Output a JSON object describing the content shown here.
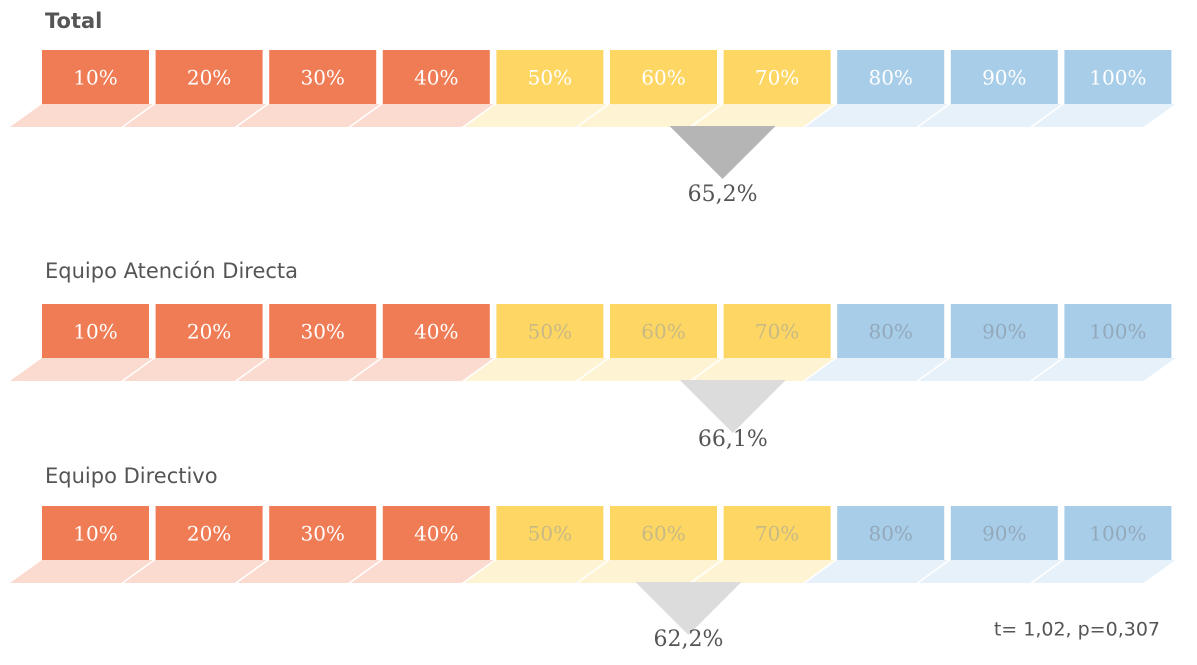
{
  "chart_data": [
    {
      "type": "segment_scale",
      "title": "Total",
      "xticks": [
        {
          "value": 10,
          "label": "10%"
        },
        {
          "value": 20,
          "label": "20%"
        },
        {
          "value": 30,
          "label": "30%"
        },
        {
          "value": 40,
          "label": "40%"
        },
        {
          "value": 50,
          "label": "50%"
        },
        {
          "value": 60,
          "label": "60%"
        },
        {
          "value": 70,
          "label": "70%"
        },
        {
          "value": 80,
          "label": "80%"
        },
        {
          "value": 90,
          "label": "90%"
        },
        {
          "value": 100,
          "label": "100%"
        }
      ],
      "segment_colors": [
        "#f07c55",
        "#f07c55",
        "#f07c55",
        "#f07c55",
        "#fdd663",
        "#fdd663",
        "#fdd663",
        "#a8cde8",
        "#a8cde8",
        "#a8cde8"
      ],
      "tick_label_colors": [
        "#ffffff",
        "#ffffff",
        "#ffffff",
        "#ffffff",
        "#ffffff",
        "#ffffff",
        "#ffffff",
        "#ffffff",
        "#ffffff",
        "#ffffff"
      ],
      "values": [
        65.2
      ],
      "value_labels": [
        "65,2%"
      ],
      "marker_color": "#b5b5b5"
    },
    {
      "type": "segment_scale",
      "title": "Equipo Atención Directa",
      "xticks": [
        {
          "value": 10,
          "label": "10%"
        },
        {
          "value": 20,
          "label": "20%"
        },
        {
          "value": 30,
          "label": "30%"
        },
        {
          "value": 40,
          "label": "40%"
        },
        {
          "value": 50,
          "label": "50%"
        },
        {
          "value": 60,
          "label": "60%"
        },
        {
          "value": 70,
          "label": "70%"
        },
        {
          "value": 80,
          "label": "80%"
        },
        {
          "value": 90,
          "label": "90%"
        },
        {
          "value": 100,
          "label": "100%"
        }
      ],
      "segment_colors": [
        "#f07c55",
        "#f07c55",
        "#f07c55",
        "#f07c55",
        "#fdd663",
        "#fdd663",
        "#fdd663",
        "#a8cde8",
        "#a8cde8",
        "#a8cde8"
      ],
      "tick_label_colors": [
        "#ffffff",
        "#ffffff",
        "#ffffff",
        "#ffffff",
        "#c9b985",
        "#c9b985",
        "#c9b985",
        "#93a9bb",
        "#93a9bb",
        "#93a9bb"
      ],
      "values": [
        66.1
      ],
      "value_labels": [
        "66,1%"
      ],
      "marker_color": "#dcdcdc"
    },
    {
      "type": "segment_scale",
      "title": "Equipo Directivo",
      "xticks": [
        {
          "value": 10,
          "label": "10%"
        },
        {
          "value": 20,
          "label": "20%"
        },
        {
          "value": 30,
          "label": "30%"
        },
        {
          "value": 40,
          "label": "40%"
        },
        {
          "value": 50,
          "label": "50%"
        },
        {
          "value": 60,
          "label": "60%"
        },
        {
          "value": 70,
          "label": "70%"
        },
        {
          "value": 80,
          "label": "80%"
        },
        {
          "value": 90,
          "label": "90%"
        },
        {
          "value": 100,
          "label": "100%"
        }
      ],
      "segment_colors": [
        "#f07c55",
        "#f07c55",
        "#f07c55",
        "#f07c55",
        "#fdd663",
        "#fdd663",
        "#fdd663",
        "#a8cde8",
        "#a8cde8",
        "#a8cde8"
      ],
      "tick_label_colors": [
        "#ffffff",
        "#ffffff",
        "#ffffff",
        "#ffffff",
        "#c9b985",
        "#c9b985",
        "#c9b985",
        "#93a9bb",
        "#93a9bb",
        "#93a9bb"
      ],
      "values": [
        62.2
      ],
      "value_labels": [
        "62,2%"
      ],
      "marker_color": "#dcdcdc"
    }
  ],
  "footnote": "t= 1,02, p=0,307"
}
